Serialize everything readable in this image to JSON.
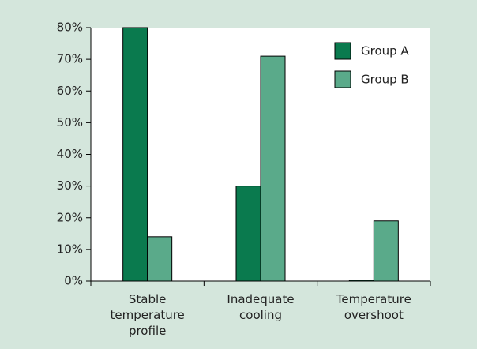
{
  "chart_data": {
    "type": "bar",
    "categories": [
      "Stable temperature profile",
      "Inadequate cooling",
      "Temperature overshoot"
    ],
    "series": [
      {
        "name": "Group A",
        "color": "#0a7a4e",
        "values": [
          80,
          30,
          0.3
        ]
      },
      {
        "name": "Group B",
        "color": "#5aaa8a",
        "values": [
          14,
          71,
          19
        ]
      }
    ],
    "ylim": [
      0,
      80
    ],
    "yticks": [
      {
        "value": 0,
        "label": "0%"
      },
      {
        "value": 10,
        "label": "10%"
      },
      {
        "value": 20,
        "label": "20%"
      },
      {
        "value": 30,
        "label": "30%"
      },
      {
        "value": 40,
        "label": "40%"
      },
      {
        "value": 50,
        "label": "50%"
      },
      {
        "value": 60,
        "label": "60%"
      },
      {
        "value": 70,
        "label": "70%"
      },
      {
        "value": 80,
        "label": "80%"
      }
    ],
    "legend": "top-right"
  }
}
